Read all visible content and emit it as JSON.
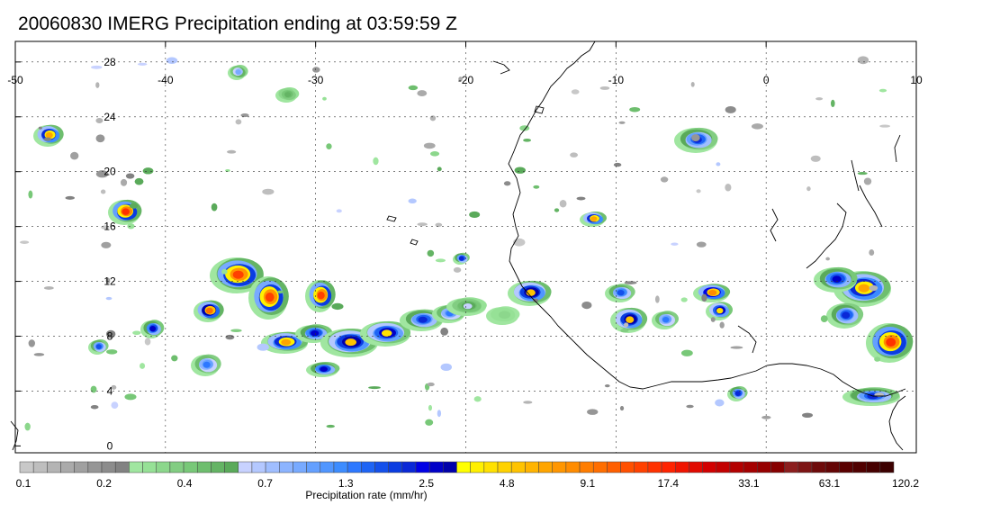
{
  "title": "20060830 IMERG Precipitation ending at 03:59:59 Z",
  "map": {
    "lon_ticks": [
      -50,
      -40,
      -30,
      -20,
      -10,
      0,
      10
    ],
    "lat_ticks": [
      0,
      4,
      8,
      12,
      16,
      20,
      24,
      28
    ],
    "lon_range": [
      -50,
      10
    ],
    "lat_range": [
      -0.5,
      29.5
    ],
    "gridlines": true
  },
  "colorbar": {
    "title": "Precipitation rate (mm/hr)",
    "tick_labels": [
      "0.1",
      "0.2",
      "0.4",
      "0.7",
      "1.3",
      "2.5",
      "4.8",
      "9.1",
      "17.4",
      "33.1",
      "63.1",
      "120.2"
    ],
    "colors": [
      "#c8c8c8",
      "#bebebe",
      "#b4b4b4",
      "#aaaaaa",
      "#a0a0a0",
      "#969696",
      "#8c8c8c",
      "#828282",
      "#a0e6a0",
      "#96e196",
      "#8cd78c",
      "#82cd82",
      "#78c878",
      "#6ebe6e",
      "#64b464",
      "#5aaa5a",
      "#c8d2ff",
      "#b4c8ff",
      "#a0beff",
      "#8cb4ff",
      "#78aaff",
      "#64a0ff",
      "#5096ff",
      "#3c8cff",
      "#2d78ff",
      "#1e64f5",
      "#1450eb",
      "#0a3ce1",
      "#0a28d7",
      "#0000e6",
      "#0000c8",
      "#0000aa",
      "#ffff00",
      "#fff000",
      "#ffe100",
      "#ffd200",
      "#ffc300",
      "#ffb400",
      "#ffa500",
      "#ff9600",
      "#ff8c00",
      "#ff7d00",
      "#ff6e00",
      "#ff5f00",
      "#ff5000",
      "#ff4100",
      "#ff3200",
      "#ff2300",
      "#f01400",
      "#e10a00",
      "#d20000",
      "#c30000",
      "#b40000",
      "#a50000",
      "#960000",
      "#870000",
      "#8c1e1e",
      "#7d1414",
      "#6e0a0a",
      "#640505",
      "#5a0000",
      "#500000",
      "#460000",
      "#3c0000"
    ]
  }
}
